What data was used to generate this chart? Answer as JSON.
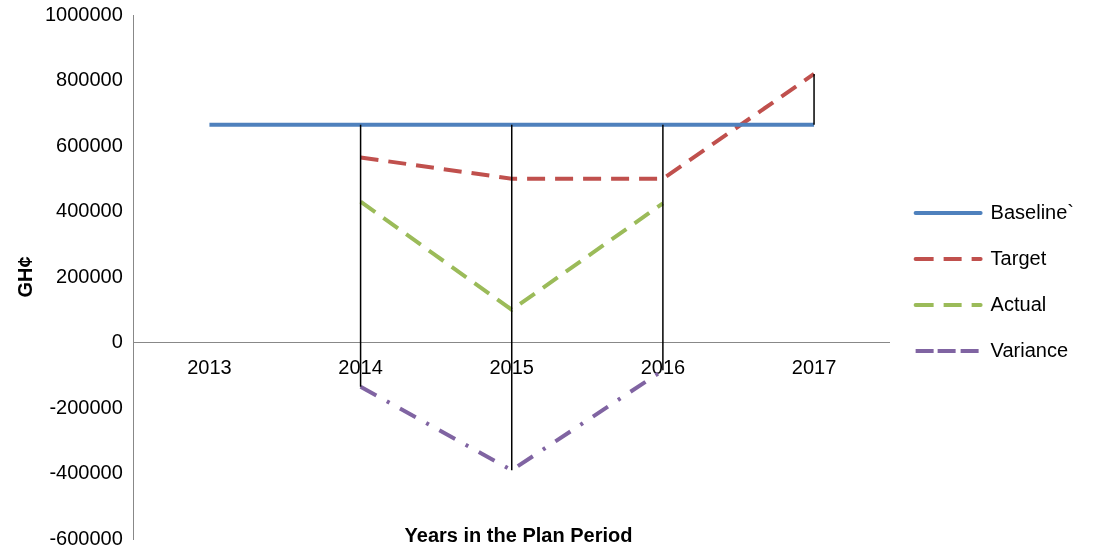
{
  "chart_data": {
    "type": "line",
    "xlabel": "Years in the Plan Period",
    "ylabel": "GH¢",
    "categories": [
      "2013",
      "2014",
      "2015",
      "2016",
      "2017"
    ],
    "series": [
      {
        "name": "Baseline`",
        "color": "#4f81bd",
        "line_style": "solid",
        "values": [
          665000,
          665000,
          665000,
          665000,
          665000
        ],
        "errors": [
          null,
          [
            -135000,
            665000
          ],
          [
            -390000,
            665000
          ],
          [
            -85000,
            665000
          ],
          [
            665000,
            820000
          ]
        ]
      },
      {
        "name": "Target",
        "color": "#c0504d",
        "line_style": "dashed",
        "values": [
          null,
          565000,
          500000,
          500000,
          820000
        ]
      },
      {
        "name": "Actual",
        "color": "#9bbb59",
        "line_style": "dashed",
        "values": [
          null,
          430000,
          100000,
          425000,
          null
        ]
      },
      {
        "name": "Variance",
        "color": "#8064a2",
        "line_style": "dotted",
        "values": [
          null,
          -135000,
          -390000,
          -85000,
          null
        ]
      }
    ],
    "ylim": [
      -600000,
      1000000
    ],
    "yticks": [
      -600000,
      -400000,
      -200000,
      0,
      200000,
      400000,
      600000,
      800000,
      1000000
    ],
    "grid": false,
    "legend": "right",
    "marker": "none"
  }
}
